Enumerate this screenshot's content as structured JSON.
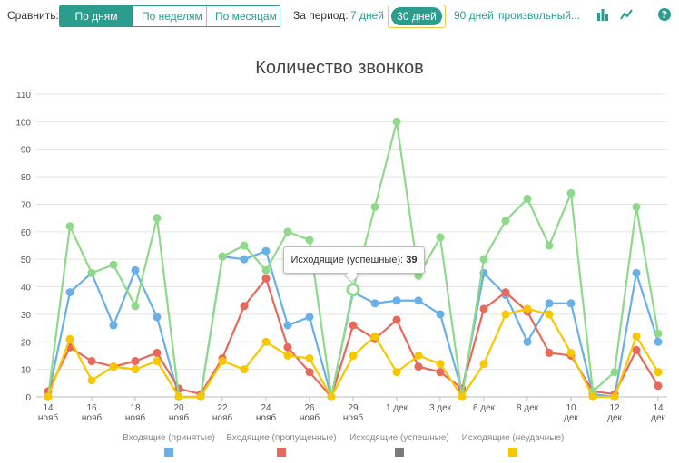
{
  "toolbar": {
    "compare_label": "Сравнить:",
    "compare_options": [
      "По дням",
      "По неделям",
      "По месяцам"
    ],
    "period_label": "За период:",
    "period_7": "7 дней",
    "period_30": "30 дней",
    "period_90": "90 дней",
    "period_custom": "произвольный...",
    "icons": [
      "bar-chart-icon",
      "line-chart-icon",
      "help-icon"
    ]
  },
  "colors": {
    "accent": "#2a9d8f",
    "series": [
      "#6ab0e8",
      "#e8685a",
      "#7a7a7a",
      "#f7c800"
    ],
    "green_line": "#8fd98a"
  },
  "tooltip": {
    "label": "Исходящие (успешные):",
    "value": "39"
  },
  "chart_data": {
    "type": "line",
    "title": "Количество звонков",
    "ylim": [
      0,
      110
    ],
    "yticks": [
      0,
      10,
      20,
      30,
      40,
      50,
      60,
      70,
      80,
      90,
      100,
      110
    ],
    "grid": true,
    "legend_position": "bottom",
    "x_labels": [
      {
        "i": 0,
        "lines": [
          "14",
          "нояб"
        ]
      },
      {
        "i": 2,
        "lines": [
          "16",
          "нояб"
        ]
      },
      {
        "i": 4,
        "lines": [
          "18",
          "нояб"
        ]
      },
      {
        "i": 6,
        "lines": [
          "20",
          "нояб"
        ]
      },
      {
        "i": 8,
        "lines": [
          "22",
          "нояб"
        ]
      },
      {
        "i": 10,
        "lines": [
          "24",
          "нояб"
        ]
      },
      {
        "i": 12,
        "lines": [
          "26",
          "нояб"
        ]
      },
      {
        "i": 14,
        "lines": [
          "29",
          "нояб"
        ]
      },
      {
        "i": 16,
        "lines": [
          "1 дек"
        ]
      },
      {
        "i": 18,
        "lines": [
          "3 дек"
        ]
      },
      {
        "i": 20,
        "lines": [
          "6 дек"
        ]
      },
      {
        "i": 22,
        "lines": [
          "8 дек"
        ]
      },
      {
        "i": 24,
        "lines": [
          "10",
          "дек"
        ]
      },
      {
        "i": 26,
        "lines": [
          "12",
          "дек"
        ]
      },
      {
        "i": 28,
        "lines": [
          "14",
          "дек"
        ]
      }
    ],
    "series": [
      {
        "name": "Входящие (принятые)",
        "color": "#6ab0e8",
        "values": [
          0,
          38,
          45,
          26,
          46,
          29,
          0,
          0,
          51,
          50,
          53,
          26,
          29,
          0,
          38,
          34,
          35,
          35,
          30,
          2,
          45,
          37,
          20,
          34,
          34,
          1,
          0,
          45,
          20
        ]
      },
      {
        "name": "Входящие (пропущенные)",
        "color": "#e8685a",
        "values": [
          2,
          18,
          13,
          11,
          13,
          16,
          3,
          1,
          14,
          33,
          43,
          18,
          9,
          0,
          26,
          21,
          28,
          11,
          9,
          3,
          32,
          38,
          31,
          16,
          15,
          2,
          1,
          17,
          4
        ]
      },
      {
        "name": "Исходящие (успешные)",
        "color": "#8fd98a",
        "legend_color": "#7a7a7a",
        "values": [
          0,
          62,
          45,
          48,
          33,
          65,
          0,
          0,
          51,
          55,
          46,
          60,
          57,
          0,
          39,
          69,
          100,
          44,
          58,
          0,
          50,
          64,
          72,
          55,
          74,
          2,
          9,
          69,
          23
        ]
      },
      {
        "name": "Исходящие (неудачные)",
        "color": "#f7c800",
        "values": [
          0,
          21,
          6,
          11,
          10,
          13,
          0,
          0,
          13,
          10,
          20,
          15,
          14,
          0,
          15,
          22,
          9,
          15,
          12,
          0,
          12,
          30,
          32,
          30,
          16,
          0,
          0,
          22,
          9
        ]
      }
    ],
    "highlight": {
      "series": 2,
      "index": 14
    }
  }
}
